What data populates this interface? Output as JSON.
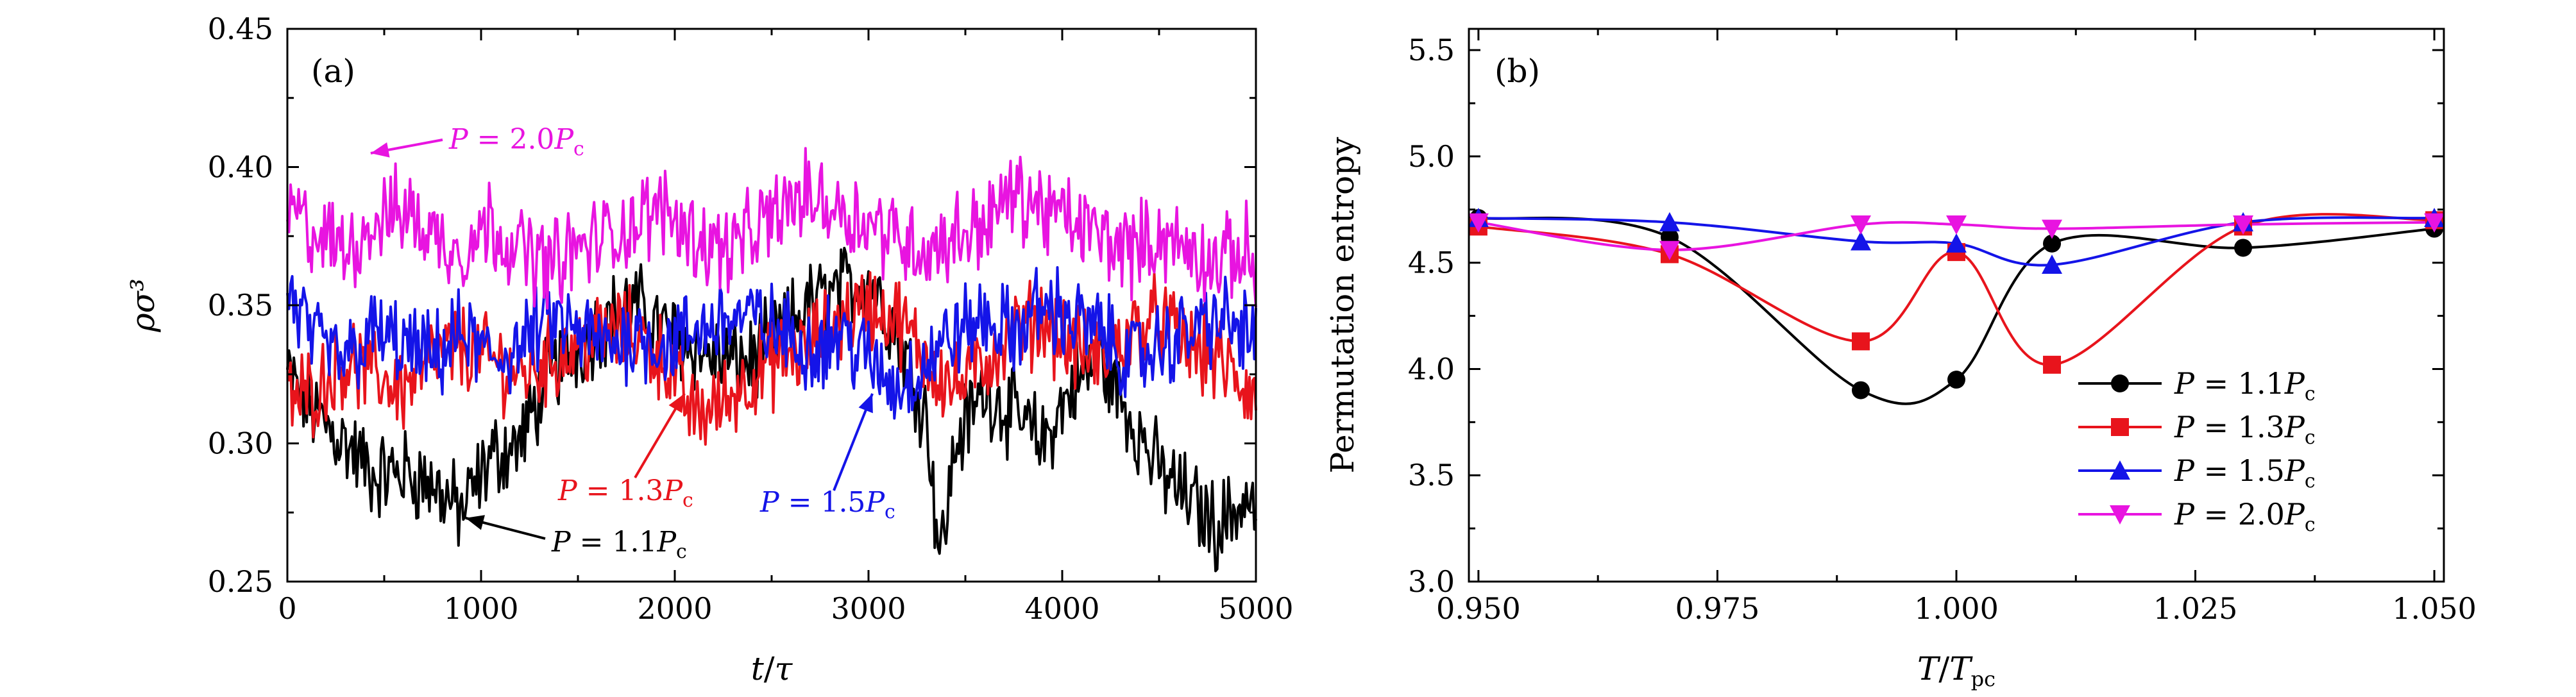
{
  "chart_data": [
    {
      "type": "line",
      "panel_label": "(a)",
      "xlabel": "t/τ",
      "ylabel": "ρσ³",
      "xlim": [
        0,
        5000
      ],
      "ylim": [
        0.25,
        0.45
      ],
      "x_ticks": [
        "0",
        "1000",
        "2000",
        "3000",
        "4000",
        "5000"
      ],
      "y_ticks": [
        "0.25",
        "0.30",
        "0.35",
        "0.40",
        "0.45"
      ],
      "series": [
        {
          "name": "P = 1.1Pc",
          "color": "#000000",
          "t": [
            0,
            150,
            300,
            450,
            600,
            750,
            900,
            1050,
            1200,
            1350,
            1500,
            1650,
            1800,
            1950,
            2100,
            2250,
            2400,
            2550,
            2700,
            2850,
            3000,
            3150,
            3300,
            3370,
            3450,
            3600,
            3750,
            3900,
            4050,
            4200,
            4350,
            4500,
            4650,
            4800,
            4950,
            5000
          ],
          "values": [
            0.325,
            0.31,
            0.3,
            0.288,
            0.29,
            0.285,
            0.275,
            0.295,
            0.3,
            0.325,
            0.335,
            0.345,
            0.35,
            0.34,
            0.335,
            0.33,
            0.33,
            0.34,
            0.35,
            0.355,
            0.36,
            0.34,
            0.31,
            0.258,
            0.3,
            0.32,
            0.31,
            0.3,
            0.32,
            0.33,
            0.31,
            0.29,
            0.28,
            0.27,
            0.28,
            0.275
          ]
        },
        {
          "name": "P = 1.3Pc",
          "color": "#e8141c",
          "t": [
            0,
            150,
            300,
            450,
            600,
            750,
            900,
            1050,
            1200,
            1350,
            1500,
            1650,
            1800,
            1950,
            2100,
            2250,
            2400,
            2550,
            2700,
            2850,
            3000,
            3150,
            3300,
            3450,
            3600,
            3750,
            3900,
            4050,
            4200,
            4350,
            4500,
            4650,
            4800,
            4950,
            5000
          ],
          "values": [
            0.315,
            0.32,
            0.33,
            0.325,
            0.32,
            0.33,
            0.335,
            0.33,
            0.325,
            0.33,
            0.335,
            0.34,
            0.34,
            0.33,
            0.31,
            0.315,
            0.325,
            0.33,
            0.335,
            0.345,
            0.35,
            0.345,
            0.33,
            0.32,
            0.33,
            0.34,
            0.345,
            0.335,
            0.33,
            0.34,
            0.345,
            0.335,
            0.33,
            0.32,
            0.315
          ]
        },
        {
          "name": "P = 1.5Pc",
          "color": "#1414e8",
          "t": [
            0,
            150,
            300,
            450,
            600,
            750,
            900,
            1050,
            1200,
            1350,
            1500,
            1650,
            1800,
            1950,
            2100,
            2250,
            2400,
            2550,
            2700,
            2850,
            3000,
            3150,
            3300,
            3450,
            3600,
            3750,
            3900,
            4050,
            4200,
            4350,
            4500,
            4650,
            4800,
            4950,
            5000
          ],
          "values": [
            0.355,
            0.335,
            0.33,
            0.34,
            0.335,
            0.33,
            0.34,
            0.33,
            0.335,
            0.345,
            0.34,
            0.335,
            0.34,
            0.335,
            0.34,
            0.345,
            0.345,
            0.34,
            0.335,
            0.34,
            0.33,
            0.32,
            0.33,
            0.34,
            0.345,
            0.34,
            0.35,
            0.345,
            0.34,
            0.33,
            0.335,
            0.34,
            0.345,
            0.34,
            0.335
          ]
        },
        {
          "name": "P = 2.0Pc",
          "color": "#e814e0",
          "t": [
            0,
            150,
            300,
            450,
            600,
            750,
            900,
            1050,
            1200,
            1350,
            1500,
            1650,
            1800,
            1950,
            2100,
            2250,
            2400,
            2550,
            2700,
            2850,
            3000,
            3150,
            3300,
            3450,
            3600,
            3750,
            3900,
            4050,
            4200,
            4350,
            4500,
            4650,
            4800,
            4950,
            5000
          ],
          "values": [
            0.385,
            0.375,
            0.37,
            0.38,
            0.385,
            0.375,
            0.37,
            0.38,
            0.37,
            0.365,
            0.37,
            0.375,
            0.38,
            0.385,
            0.375,
            0.37,
            0.375,
            0.385,
            0.39,
            0.385,
            0.38,
            0.375,
            0.37,
            0.375,
            0.38,
            0.39,
            0.385,
            0.38,
            0.375,
            0.37,
            0.375,
            0.37,
            0.365,
            0.37,
            0.36
          ]
        }
      ],
      "annotations": [
        {
          "text": "P = 2.0Pc",
          "color": "#e814e0",
          "arrow_to": [
            430,
            0.405
          ]
        },
        {
          "text": "P = 1.3Pc",
          "color": "#e8141c",
          "arrow_to": [
            2050,
            0.318
          ]
        },
        {
          "text": "P = 1.5Pc",
          "color": "#1414e8",
          "arrow_to": [
            3020,
            0.318
          ]
        },
        {
          "text": "P = 1.1Pc",
          "color": "#000000",
          "arrow_to": [
            920,
            0.273
          ]
        }
      ]
    },
    {
      "type": "line",
      "panel_label": "(b)",
      "xlabel": "T/Tpc",
      "ylabel": "Permutation entropy",
      "xlim": [
        0.949,
        1.051
      ],
      "ylim": [
        3.0,
        5.6
      ],
      "x_ticks": [
        "0.950",
        "0.975",
        "1.000",
        "1.025",
        "1.050"
      ],
      "y_ticks": [
        "3.0",
        "3.5",
        "4.0",
        "4.5",
        "5.0",
        "5.5"
      ],
      "x": [
        0.95,
        0.97,
        0.99,
        1.0,
        1.01,
        1.03,
        1.05
      ],
      "legend_position": "lower-right",
      "series": [
        {
          "name": "P = 1.1Pc",
          "color": "#000000",
          "marker": "circle",
          "values": [
            4.71,
            4.62,
            3.9,
            3.95,
            4.59,
            4.57,
            4.66
          ]
        },
        {
          "name": "P = 1.3Pc",
          "color": "#e8141c",
          "marker": "square",
          "values": [
            4.67,
            4.54,
            4.13,
            4.55,
            4.02,
            4.67,
            4.7
          ]
        },
        {
          "name": "P = 1.5Pc",
          "color": "#1414e8",
          "marker": "triangle-up",
          "values": [
            4.71,
            4.69,
            4.6,
            4.59,
            4.49,
            4.69,
            4.71
          ]
        },
        {
          "name": "P = 2.0Pc",
          "color": "#e814e0",
          "marker": "triangle-down",
          "values": [
            4.69,
            4.56,
            4.68,
            4.68,
            4.66,
            4.68,
            4.69
          ]
        }
      ]
    }
  ]
}
